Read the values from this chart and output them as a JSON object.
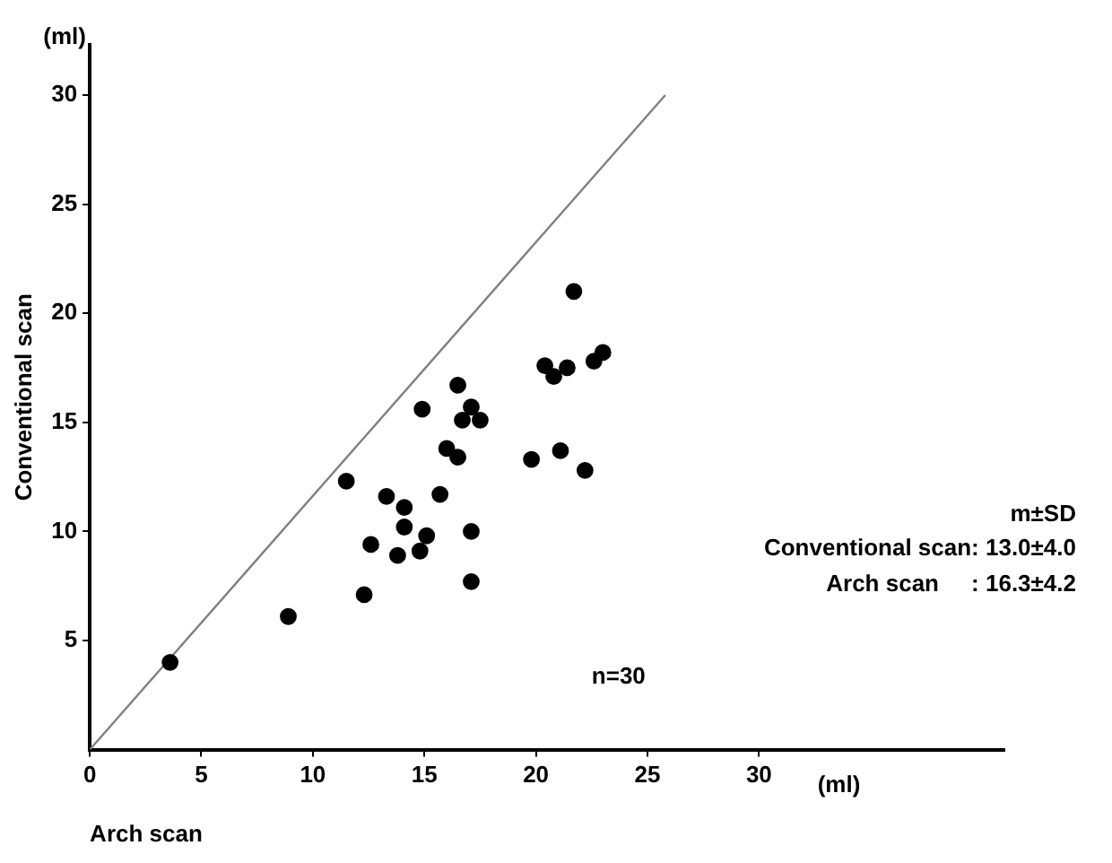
{
  "chart_data": {
    "type": "scatter",
    "xlabel": "Arch scan",
    "ylabel": "Conventional scan",
    "annotations": [
      "(ml)",
      "(ml)",
      "n=30",
      "m±SD",
      "Conventional scan: 13.0±4.0",
      "Arch scan     : 16.3±4.2"
    ],
    "xlim": [
      0,
      41
    ],
    "ylim": [
      0,
      32.3
    ],
    "xticks": [
      0,
      5,
      10,
      15,
      20,
      25,
      30
    ],
    "yticks": [
      5,
      10,
      15,
      20,
      25,
      30
    ],
    "grid": false,
    "legend": false,
    "marker": "circle",
    "series": [
      {
        "color": "#000000",
        "x": [
          3.6,
          8.9,
          11.5,
          12.3,
          12.6,
          13.3,
          13.8,
          14.1,
          14.1,
          14.8,
          14.9,
          15.1,
          15.7,
          16.0,
          16.5,
          16.5,
          16.7,
          17.1,
          17.1,
          17.1,
          17.5,
          19.8,
          20.4,
          20.8,
          21.1,
          21.4,
          21.7,
          22.2,
          22.6,
          23.0
        ],
        "values": [
          4.0,
          6.1,
          12.3,
          7.1,
          9.4,
          11.6,
          8.9,
          11.1,
          10.2,
          9.1,
          15.6,
          9.8,
          11.7,
          13.8,
          13.4,
          16.7,
          15.1,
          15.7,
          10.0,
          7.7,
          15.1,
          13.3,
          17.6,
          17.1,
          13.7,
          17.5,
          21.0,
          12.8,
          17.8,
          18.2
        ]
      },
      {
        "type": "line",
        "color": "#808080",
        "x": [
          0,
          25.8
        ],
        "values": [
          0,
          30
        ],
        "marker": "none",
        "line_style": "solid"
      }
    ]
  }
}
